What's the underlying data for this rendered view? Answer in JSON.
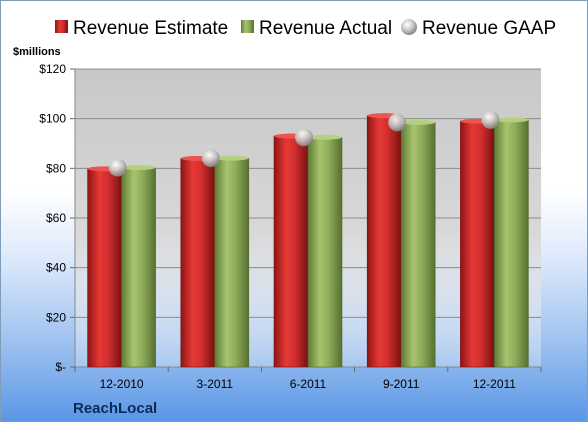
{
  "company": "ReachLocal",
  "colors": {
    "estimate": "#d32f2f",
    "actual": "#8fae5b",
    "gaap": "#c8c8c8",
    "plot_bg": "#cfcfcf"
  },
  "chart_data": {
    "type": "bar",
    "ylabel": "$millions",
    "ylim": [
      0,
      120
    ],
    "yticks": [
      0,
      20,
      40,
      60,
      80,
      100,
      120
    ],
    "ytick_labels": [
      "$-",
      "$20",
      "$40",
      "$60",
      "$80",
      "$100",
      "$120"
    ],
    "categories": [
      "12-2010",
      "3-2011",
      "6-2011",
      "9-2011",
      "12-2011"
    ],
    "grid": true,
    "legend": "top",
    "series": [
      {
        "name": "Revenue Estimate",
        "kind": "bar",
        "values": [
          79.8,
          84.0,
          93.0,
          101.2,
          99.0
        ]
      },
      {
        "name": "Revenue Actual",
        "kind": "bar",
        "values": [
          80.3,
          84.1,
          92.5,
          98.5,
          99.5
        ]
      },
      {
        "name": "Revenue GAAP",
        "kind": "marker",
        "values": [
          80.3,
          84.1,
          92.5,
          98.5,
          99.5
        ]
      }
    ]
  }
}
